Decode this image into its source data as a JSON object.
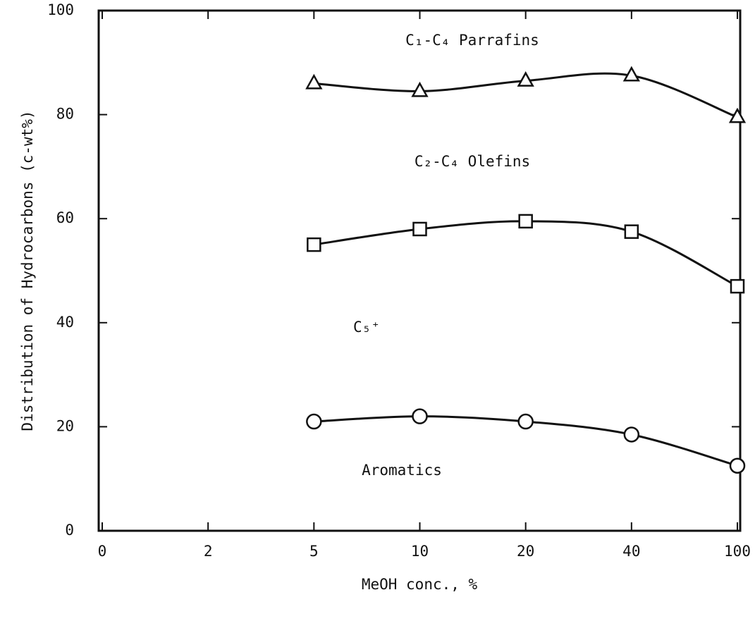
{
  "chart_data": {
    "type": "line",
    "x_label": "MeOH conc., %",
    "y_label": "Distribution of Hydrocarbons (c-wt%)",
    "categories": [
      "0",
      "2",
      "5",
      "10",
      "20",
      "40",
      "100"
    ],
    "ylim": [
      0,
      100
    ],
    "yticks": [
      0,
      20,
      40,
      60,
      80,
      100
    ],
    "annotations": [
      "C₁-C₄ Parrafins",
      "C₂-C₄ Olefins",
      "C₅⁺",
      "Aromatics"
    ],
    "series": [
      {
        "marker": "triangle",
        "color": "#111111",
        "values": [
          null,
          null,
          86,
          84.5,
          86.5,
          87.5,
          79.5
        ]
      },
      {
        "marker": "square",
        "color": "#111111",
        "values": [
          null,
          null,
          55,
          58,
          59.5,
          57.5,
          47
        ]
      },
      {
        "marker": "circle",
        "color": "#111111",
        "values": [
          null,
          null,
          21,
          22,
          21,
          18.5,
          12.5
        ]
      }
    ]
  }
}
